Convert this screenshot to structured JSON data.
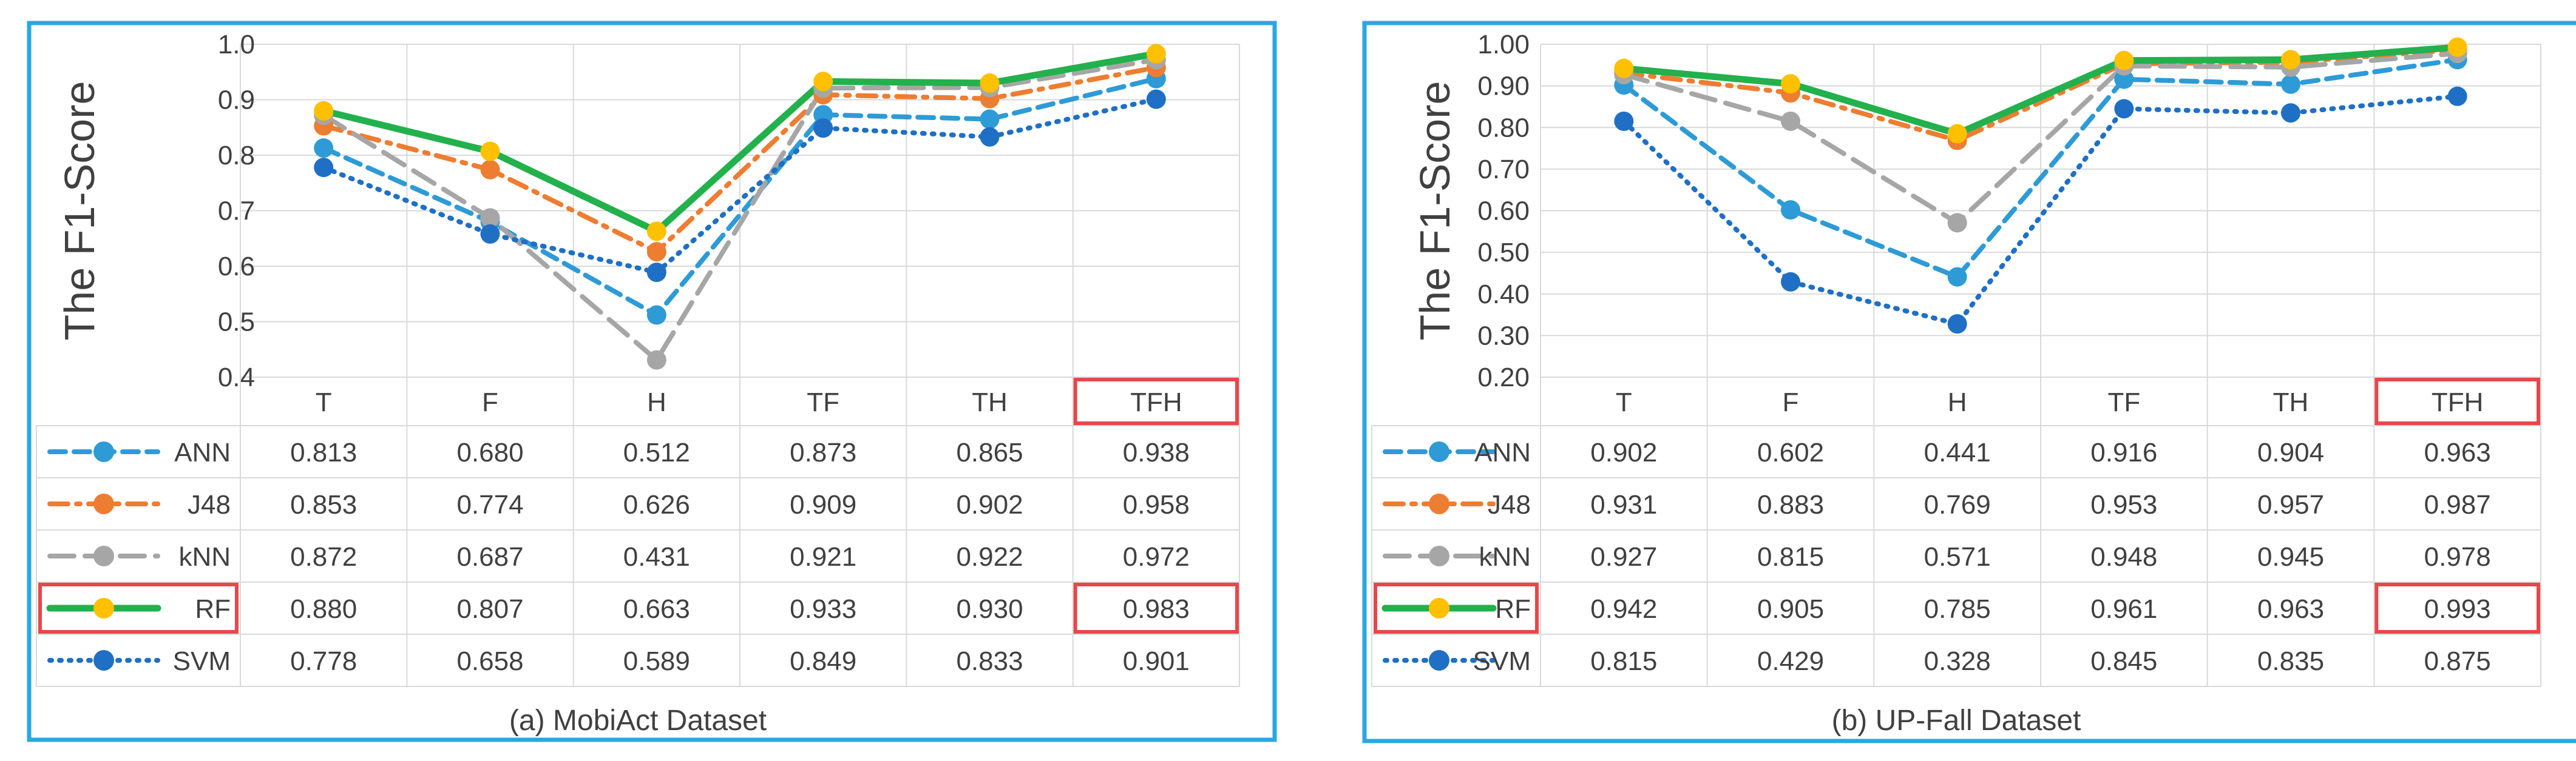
{
  "colors": {
    "frame": "#29a8e0",
    "grid": "#d9d9d9",
    "text": "#404040",
    "highlight": "#e8474a"
  },
  "series_styles": [
    {
      "name": "ANN",
      "color": "#2e9bd6",
      "marker": "#2e9bd6",
      "dash": "dash"
    },
    {
      "name": "J48",
      "color": "#ed7d31",
      "marker": "#ed7d31",
      "dash": "dashdot"
    },
    {
      "name": "kNN",
      "color": "#a6a6a6",
      "marker": "#a6a6a6",
      "dash": "longdash"
    },
    {
      "name": "RF",
      "color": "#22b14c",
      "marker": "#ffc000",
      "dash": "solid"
    },
    {
      "name": "SVM",
      "color": "#1f6fc5",
      "marker": "#1f6fc5",
      "dash": "dot"
    }
  ],
  "chart_data": [
    {
      "type": "line",
      "title": "(a) MobiAct Dataset",
      "ylabel": "The F1-Score",
      "xlabel": "",
      "categories": [
        "T",
        "F",
        "H",
        "TF",
        "TH",
        "TFH"
      ],
      "ylim": [
        0.4,
        1.0
      ],
      "ytick_values": [
        0.4,
        0.5,
        0.6,
        0.7,
        0.8,
        0.9,
        1.0
      ],
      "ytick_labels": [
        "0.4",
        "0.5",
        "0.6",
        "0.7",
        "0.8",
        "0.9",
        "1.0"
      ],
      "grid": true,
      "highlighted_category": "TFH",
      "highlighted_series": "RF",
      "series": [
        {
          "name": "ANN",
          "values": [
            0.813,
            0.68,
            0.512,
            0.873,
            0.865,
            0.938
          ],
          "labels": [
            "0.813",
            "0.680",
            "0.512",
            "0.873",
            "0.865",
            "0.938"
          ]
        },
        {
          "name": "J48",
          "values": [
            0.853,
            0.774,
            0.626,
            0.909,
            0.902,
            0.958
          ],
          "labels": [
            "0.853",
            "0.774",
            "0.626",
            "0.909",
            "0.902",
            "0.958"
          ]
        },
        {
          "name": "kNN",
          "values": [
            0.872,
            0.687,
            0.431,
            0.921,
            0.922,
            0.972
          ],
          "labels": [
            "0.872",
            "0.687",
            "0.431",
            "0.921",
            "0.922",
            "0.972"
          ]
        },
        {
          "name": "RF",
          "values": [
            0.88,
            0.807,
            0.663,
            0.933,
            0.93,
            0.983
          ],
          "labels": [
            "0.880",
            "0.807",
            "0.663",
            "0.933",
            "0.930",
            "0.983"
          ]
        },
        {
          "name": "SVM",
          "values": [
            0.778,
            0.658,
            0.589,
            0.849,
            0.833,
            0.901
          ],
          "labels": [
            "0.778",
            "0.658",
            "0.589",
            "0.849",
            "0.833",
            "0.901"
          ]
        }
      ]
    },
    {
      "type": "line",
      "title": "(b) UP-Fall Dataset",
      "ylabel": "The F1-Score",
      "xlabel": "",
      "categories": [
        "T",
        "F",
        "H",
        "TF",
        "TH",
        "TFH"
      ],
      "ylim": [
        0.2,
        1.0
      ],
      "ytick_values": [
        0.2,
        0.3,
        0.4,
        0.5,
        0.6,
        0.7,
        0.8,
        0.9,
        1.0
      ],
      "ytick_labels": [
        "0.20",
        "0.30",
        "0.40",
        "0.50",
        "0.60",
        "0.70",
        "0.80",
        "0.90",
        "1.00"
      ],
      "grid": true,
      "highlighted_category": "TFH",
      "highlighted_series": "RF",
      "series": [
        {
          "name": "ANN",
          "values": [
            0.902,
            0.602,
            0.441,
            0.916,
            0.904,
            0.963
          ],
          "labels": [
            "0.902",
            "0.602",
            "0.441",
            "0.916",
            "0.904",
            "0.963"
          ]
        },
        {
          "name": "J48",
          "values": [
            0.931,
            0.883,
            0.769,
            0.953,
            0.957,
            0.987
          ],
          "labels": [
            "0.931",
            "0.883",
            "0.769",
            "0.953",
            "0.957",
            "0.987"
          ]
        },
        {
          "name": "kNN",
          "values": [
            0.927,
            0.815,
            0.571,
            0.948,
            0.945,
            0.978
          ],
          "labels": [
            "0.927",
            "0.815",
            "0.571",
            "0.948",
            "0.945",
            "0.978"
          ]
        },
        {
          "name": "RF",
          "values": [
            0.942,
            0.905,
            0.785,
            0.961,
            0.963,
            0.993
          ],
          "labels": [
            "0.942",
            "0.905",
            "0.785",
            "0.961",
            "0.963",
            "0.993"
          ]
        },
        {
          "name": "SVM",
          "values": [
            0.815,
            0.429,
            0.328,
            0.845,
            0.835,
            0.875
          ],
          "labels": [
            "0.815",
            "0.429",
            "0.328",
            "0.845",
            "0.835",
            "0.875"
          ]
        }
      ]
    }
  ]
}
